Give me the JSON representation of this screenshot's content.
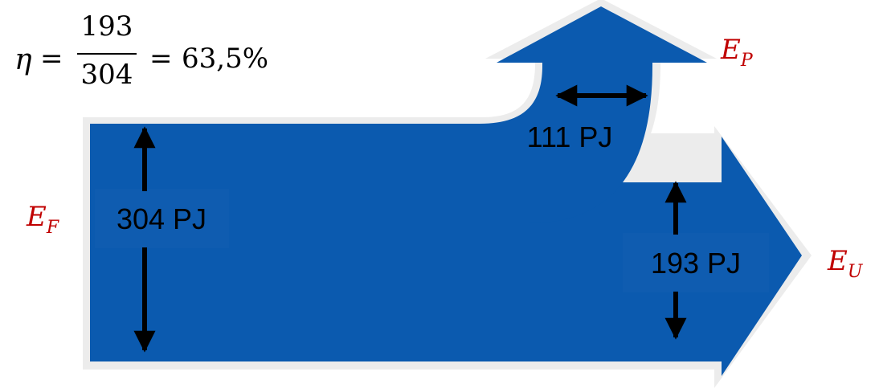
{
  "formula": {
    "symbol": "η",
    "equals_1": "=",
    "numerator": "193",
    "denominator": "304",
    "equals_2": "=",
    "result": "63,5%"
  },
  "flows": {
    "input": {
      "symbol": "E",
      "subscript": "F",
      "label": "304 PJ"
    },
    "lost": {
      "symbol": "E",
      "subscript": "P",
      "label": "111 PJ"
    },
    "useful": {
      "symbol": "E",
      "subscript": "U",
      "label": "193 PJ"
    }
  },
  "colors": {
    "arrow_fill": "#0B5AAF",
    "arrow_outline": "#EDEDED",
    "label_box": "#0F5CB0",
    "dimension_arrow": "#000000",
    "symbol_red": "#C00000"
  }
}
